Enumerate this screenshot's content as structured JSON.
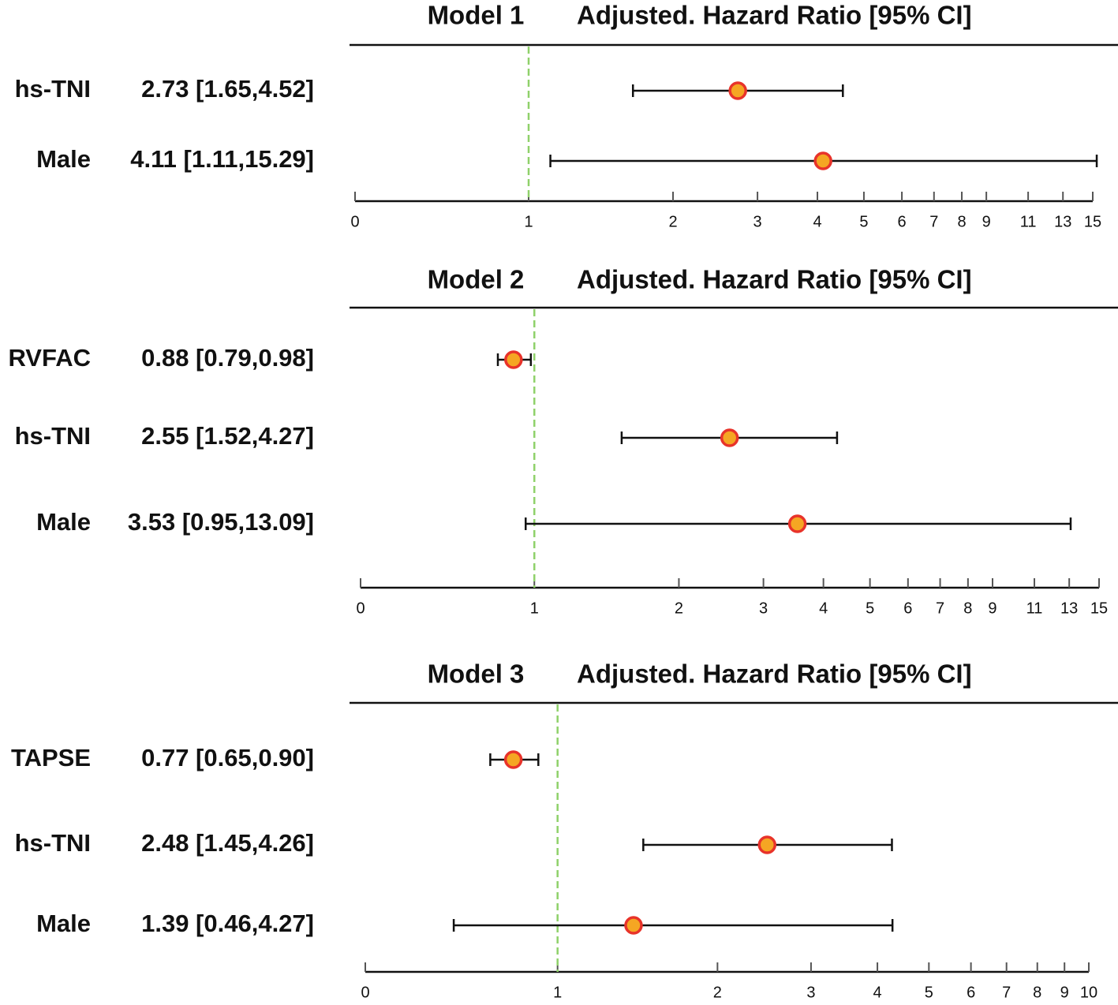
{
  "chart_data": [
    {
      "type": "forest",
      "title": "Model 1",
      "subtitle": "Adjusted. Hazard Ratio [95% CI]",
      "categories": [
        "hs-TNI",
        "Male"
      ],
      "values": [
        2.73,
        4.11
      ],
      "lower": [
        1.65,
        1.11
      ],
      "upper": [
        4.52,
        15.29
      ],
      "value_labels": [
        "2.73 [1.65,4.52]",
        "4.11 [1.11,15.29]"
      ],
      "xscale": "symlog",
      "xlim": [
        0,
        15
      ],
      "xticks": [
        0,
        1,
        2,
        3,
        4,
        5,
        6,
        7,
        8,
        9,
        11,
        13,
        15
      ],
      "refline": 1,
      "color": "#f5a623",
      "edge_color": "#e8332a",
      "refline_color": "#8fd16a"
    },
    {
      "type": "forest",
      "title": "Model 2",
      "subtitle": "Adjusted. Hazard Ratio [95% CI]",
      "categories": [
        "RVFAC",
        "hs-TNI",
        "Male"
      ],
      "values": [
        0.88,
        2.55,
        3.53
      ],
      "lower": [
        0.79,
        1.52,
        0.95
      ],
      "upper": [
        0.98,
        4.27,
        13.09
      ],
      "value_labels": [
        "0.88 [0.79,0.98]",
        "2.55 [1.52,4.27]",
        "3.53 [0.95,13.09]"
      ],
      "xscale": "symlog",
      "xlim": [
        0,
        15
      ],
      "xticks": [
        0,
        1,
        2,
        3,
        4,
        5,
        6,
        7,
        8,
        9,
        11,
        13,
        15
      ],
      "refline": 1,
      "color": "#f5a623",
      "edge_color": "#e8332a",
      "refline_color": "#8fd16a"
    },
    {
      "type": "forest",
      "title": "Model 3",
      "subtitle": "Adjusted. Hazard Ratio [95% CI]",
      "categories": [
        "TAPSE",
        "hs-TNI",
        "Male"
      ],
      "values": [
        0.77,
        2.48,
        1.39
      ],
      "lower": [
        0.65,
        1.45,
        0.46
      ],
      "upper": [
        0.9,
        4.26,
        4.27
      ],
      "value_labels": [
        "0.77 [0.65,0.90]",
        "2.48 [1.45,4.26]",
        "1.39 [0.46,4.27]"
      ],
      "xscale": "symlog",
      "xlim": [
        0,
        10
      ],
      "xticks": [
        0,
        1,
        2,
        3,
        4,
        5,
        6,
        7,
        8,
        9,
        10
      ],
      "refline": 1,
      "color": "#f5a623",
      "edge_color": "#e8332a",
      "refline_color": "#8fd16a"
    }
  ]
}
